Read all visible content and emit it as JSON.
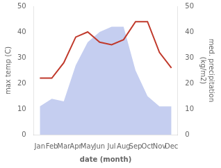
{
  "chart_data": {
    "type": "line",
    "categories": [
      "Jan",
      "Feb",
      "Mar",
      "Apr",
      "May",
      "Jun",
      "Jul",
      "Aug",
      "Sep",
      "Oct",
      "Nov",
      "Dec"
    ],
    "xlabel": "date (month)",
    "ylabel": "max temp (C)",
    "y2label": "med. precipitation\n(kg/m2)",
    "series": [
      {
        "type": "area",
        "axis": "y2",
        "color": "#c5cef0",
        "values": [
          11,
          14,
          13,
          27,
          36,
          40,
          42,
          42,
          25,
          15,
          11,
          11
        ]
      },
      {
        "type": "line",
        "color": "#c0392b",
        "values": [
          22,
          22,
          28,
          38,
          40,
          36,
          35,
          37,
          44,
          44,
          32,
          26
        ]
      }
    ],
    "ylim": [
      0,
      50
    ],
    "yticks": [
      0,
      10,
      20,
      30,
      40,
      50
    ],
    "y2lim": [
      0,
      50
    ],
    "y2ticks": [
      0,
      10,
      20,
      30,
      40,
      50
    ],
    "grid": false
  }
}
